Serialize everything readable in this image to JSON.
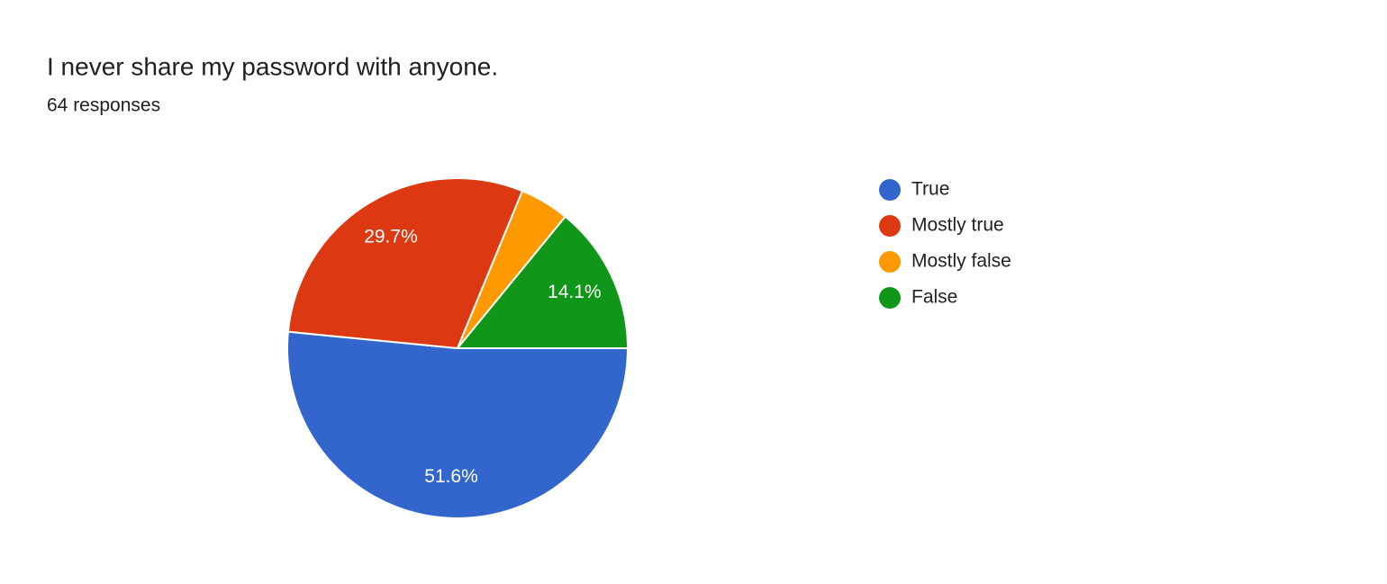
{
  "chart_data": {
    "type": "pie",
    "title": "I never share my password with anyone.",
    "subtitle": "64 responses",
    "categories": [
      "True",
      "Mostly true",
      "Mostly false",
      "False"
    ],
    "values": [
      51.6,
      29.7,
      4.7,
      14.1
    ],
    "value_labels": [
      "51.6%",
      "29.7%",
      null,
      "14.1%"
    ],
    "colors": [
      "#3366cc",
      "#dc3912",
      "#ff9900",
      "#109618"
    ],
    "legend": "right"
  }
}
